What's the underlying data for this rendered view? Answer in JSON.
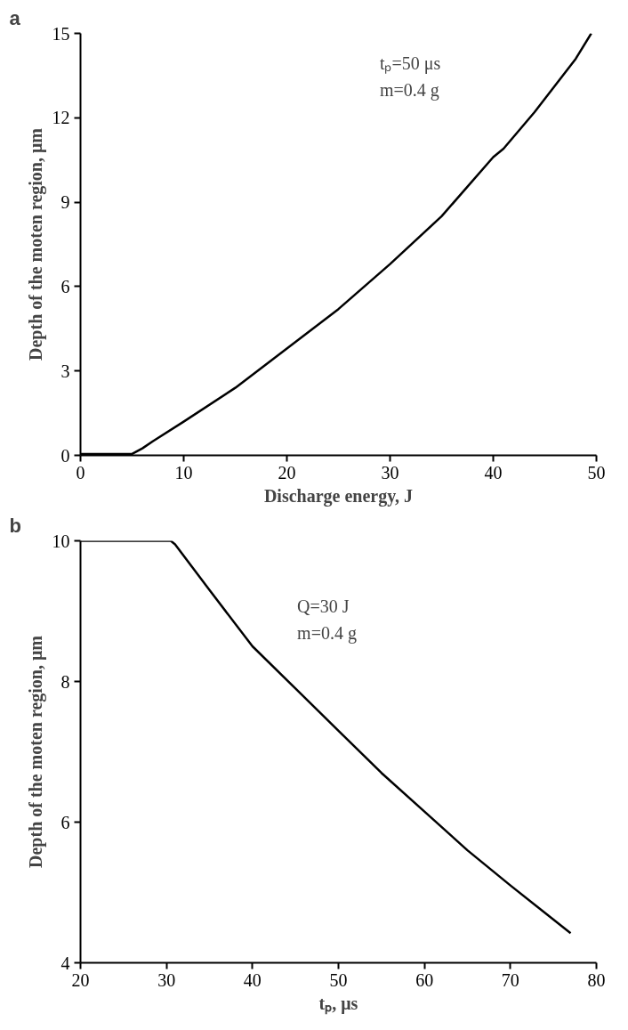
{
  "chart_data": [
    {
      "type": "line",
      "title": "a",
      "xlabel": "Discharge energy, J",
      "ylabel": "Depth of the moten region, μm",
      "annotations": [
        "tₚ=50 μs",
        "m=0.4 g"
      ],
      "x": [
        0,
        5,
        6,
        7,
        10,
        15,
        20,
        25,
        30,
        35,
        40,
        41,
        44,
        48,
        49.5
      ],
      "series": [
        {
          "color": "#000000",
          "values": [
            0.05,
            0.05,
            0.25,
            0.5,
            1.2,
            2.4,
            3.8,
            5.2,
            6.8,
            8.5,
            10.6,
            10.9,
            12.2,
            14.1,
            15
          ]
        }
      ],
      "xlim": [
        0,
        50
      ],
      "xticks": [
        0,
        10,
        20,
        30,
        40,
        50
      ],
      "ylim": [
        0,
        15
      ],
      "yticks": [
        0,
        3,
        6,
        9,
        12,
        15
      ],
      "grid": false,
      "marker": "none",
      "line_style": "solid"
    },
    {
      "type": "line",
      "title": "b",
      "xlabel": "tₚ, μs",
      "ylabel": "Depth of the moten region, μm",
      "annotations": [
        "Q=30 J",
        "m=0.4 g"
      ],
      "x": [
        20,
        30.5,
        31,
        35,
        40,
        45,
        50,
        55,
        60,
        65,
        70,
        77
      ],
      "series": [
        {
          "color": "#000000",
          "values": [
            10,
            10,
            9.95,
            9.3,
            8.5,
            7.9,
            7.3,
            6.7,
            6.15,
            5.6,
            5.1,
            4.42
          ]
        }
      ],
      "xlim": [
        20,
        80
      ],
      "xticks": [
        20,
        30,
        40,
        50,
        60,
        70,
        80
      ],
      "ylim": [
        4,
        10
      ],
      "yticks": [
        4,
        6,
        8,
        10
      ],
      "grid": false,
      "marker": "none",
      "line_style": "solid"
    }
  ]
}
